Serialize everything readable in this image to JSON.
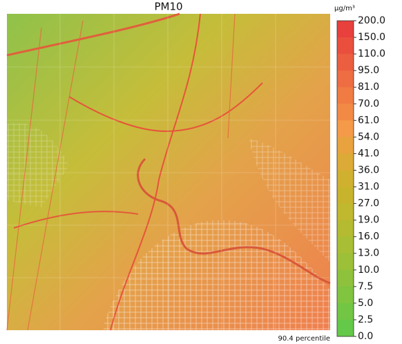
{
  "title": "PM10",
  "unit": "μg/m³",
  "footer": "90.4 percentile",
  "colorbar": {
    "ticks": [
      "200.0",
      "150.0",
      "110.0",
      "95.0",
      "81.0",
      "70.0",
      "61.0",
      "54.0",
      "41.0",
      "36.0",
      "31.0",
      "27.0",
      "19.0",
      "16.0",
      "13.0",
      "10.0",
      "7.5",
      "5.0",
      "2.5",
      "0.0"
    ],
    "colors": [
      "#e8403c",
      "#ea4f3e",
      "#ec5e40",
      "#ee6d42",
      "#f07c44",
      "#f28a46",
      "#f49a48",
      "#e8a23e",
      "#dcaa36",
      "#d0b02f",
      "#c8b42c",
      "#c0b82e",
      "#b4bb30",
      "#a8be34",
      "#9cc038",
      "#8ec23c",
      "#80c440",
      "#72c644",
      "#64c848"
    ]
  }
}
